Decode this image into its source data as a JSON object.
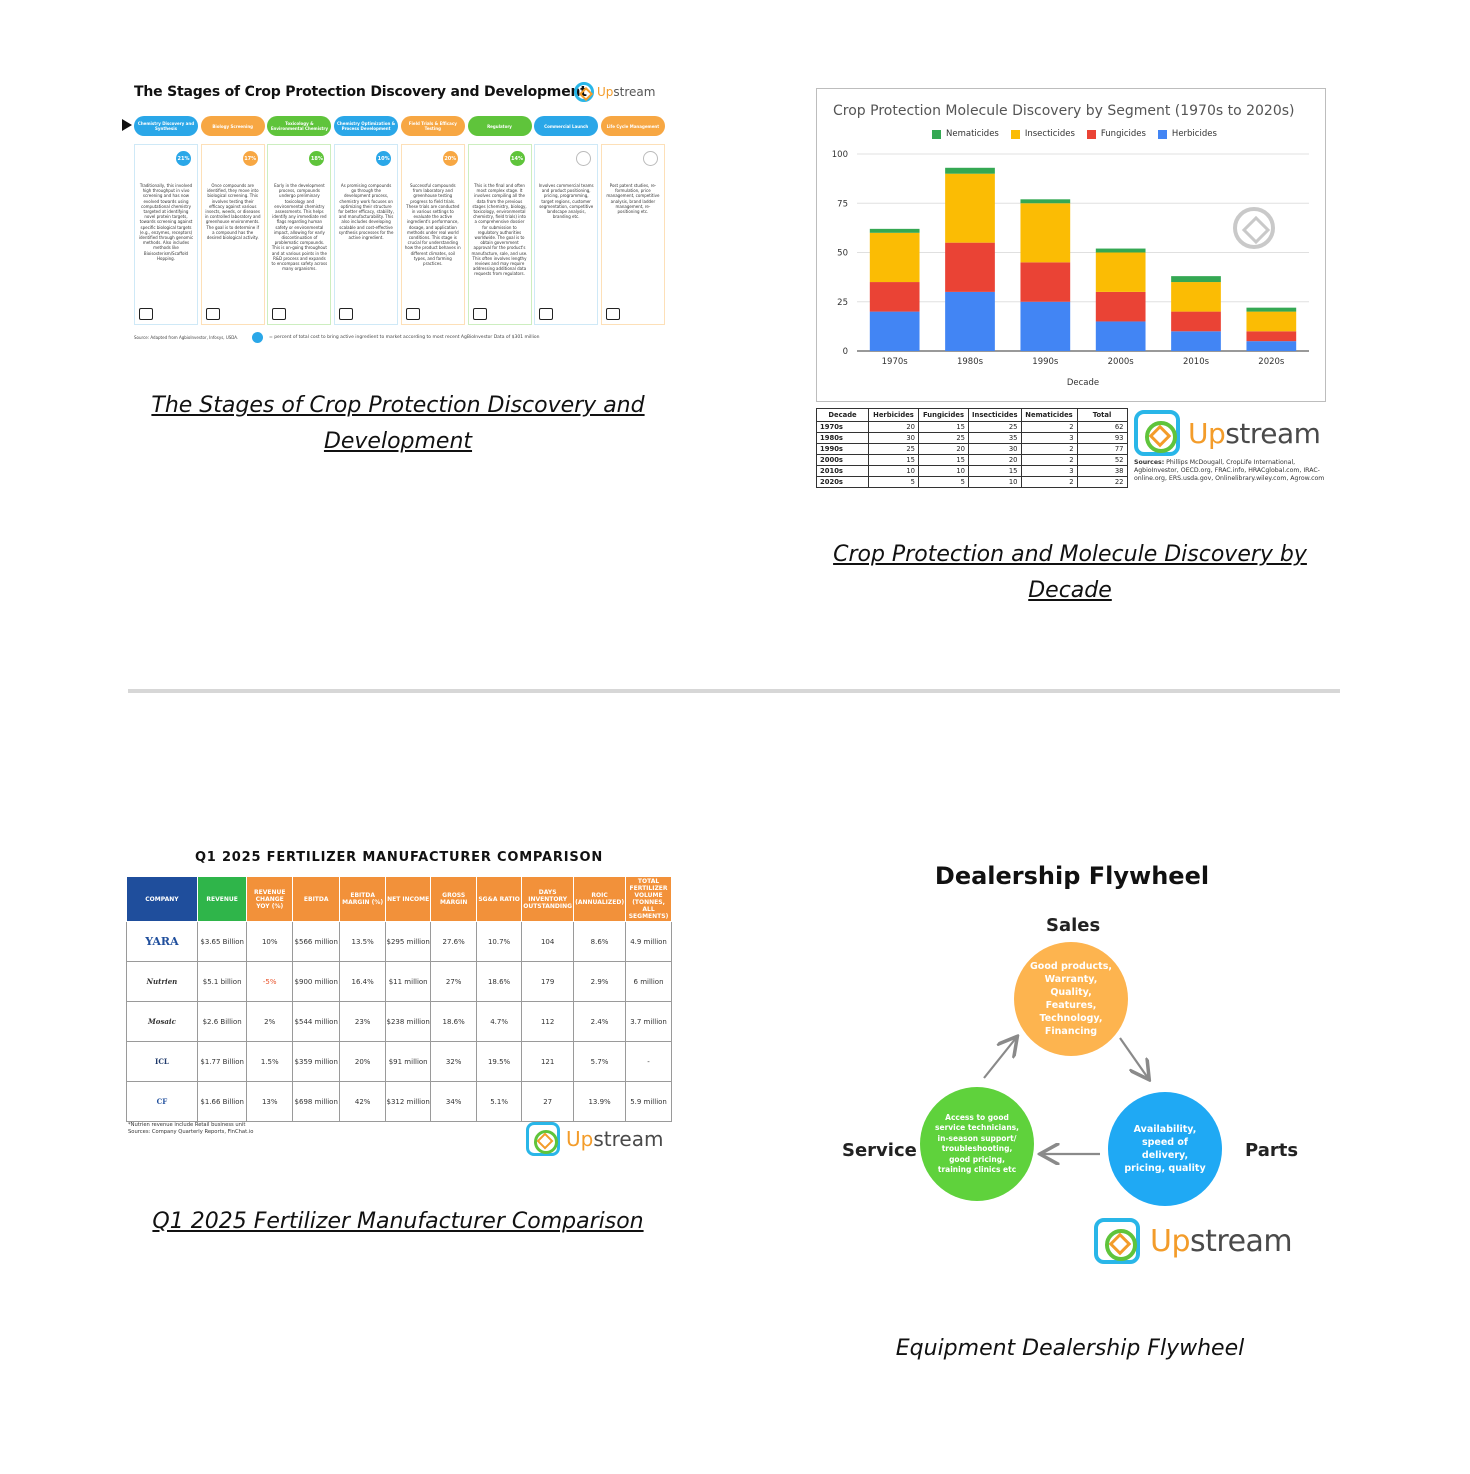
{
  "cards": {
    "stages": {
      "caption": "The Stages of Crop Protection Discovery and Development",
      "title": "The Stages of Crop Protection Discovery and Development",
      "logo_pre": "Up",
      "logo_post": "stream",
      "stages": [
        {
          "label": "Chemistry Discovery and Synthesis",
          "color": "#2aa7e8",
          "badge": "21%",
          "text": "Traditionally, this involved high throughput in vivo screening and has now evolved towards using computational chemistry targeted at identifying novel protein targets, towards screening against specific biological targets (e.g., enzymes, receptors) identified through genomic methods. Also includes methods like Bioisosterism/Scaffold Hopping."
        },
        {
          "label": "Biology Screening",
          "color": "#f7a743",
          "badge": "17%",
          "text": "Once compounds are identified, they move into biological screening. This involves testing their efficacy against various insects, weeds, or diseases in controlled laboratory and greenhouse environments. The goal is to determine if a compound has the desired biological activity."
        },
        {
          "label": "Toxicology & Environmental Chemistry",
          "color": "#5fc43b",
          "badge": "18%",
          "text": "Early in the development process, compounds undergo preliminary toxicology and environmental chemistry assessments. This helps identify any immediate red flags regarding human safety or environmental impact, allowing for early discontinuation of problematic compounds. This is on-going throughout and at various points in the R&D process and expands to encompass safety across many organisms."
        },
        {
          "label": "Chemistry Optimization & Process Development",
          "color": "#2aa7e8",
          "badge": "10%",
          "text": "As promising compounds go through the development process, chemistry work focuses on optimizing their structure for better efficacy, stability, and manufacturability. This also includes developing scalable and cost-effective synthesis processes for the active ingredient."
        },
        {
          "label": "Field Trials & Efficacy Testing",
          "color": "#f7a743",
          "badge": "20%",
          "text": "Successful compounds from laboratory and greenhouse testing progress to field trials. These trials are conducted in various settings to evaluate the active ingredient's performance, dosage, and application methods under real world conditions. This stage is crucial for understanding how the product behaves in different climates, soil types, and farming practices."
        },
        {
          "label": "Regulatory",
          "color": "#5fc43b",
          "badge": "14%",
          "text": "This is the final and often most complex stage. It involves compiling all the data from the previous stages (chemistry, biology, toxicology, environmental chemistry, field trials) into a comprehensive dossier for submission to regulatory authorities worldwide. The goal is to obtain government approval for the product's manufacture, sale, and use. This often involves lengthy reviews and may require addressing additional data requests from regulators."
        },
        {
          "label": "Commercial Launch",
          "color": "#2aa7e8",
          "badge": "",
          "text": "Involves commercial teams and product positioning, pricing, programming, target regions, customer segmentation, competitive landscape analysis, branding etc."
        },
        {
          "label": "Life Cycle Management",
          "color": "#f7a743",
          "badge": "",
          "text": "Post patent studies, re-formulation, price management, competitive analysis, brand ladder management, re-positioning etc."
        }
      ],
      "footnote": "Source: Adapted from AgbioInvestor, Infosys, USDA.",
      "legend": "= percent of total cost to bring active ingredient to market according to most recent AgBioInvestor Data of $301 million"
    },
    "molecule": {
      "caption": "Crop Protection and Molecule Discovery by Decade",
      "logo_pre": "Up",
      "logo_post": "stream",
      "sources_label": "Sources:",
      "sources": "Phillips McDougall, CropLife International, AgbioInvestor, OECD.org, FRAC.info, HRACglobal.com, IRAC-online.org, ERS.usda.gov, Onlinelibrary.wiley.com, Agrow.com",
      "table_headers": [
        "Decade",
        "Herbicides",
        "Fungicides",
        "Insecticides",
        "Nematicides",
        "Total"
      ],
      "table_rows": [
        [
          "1970s",
          "20",
          "15",
          "25",
          "2",
          "62"
        ],
        [
          "1980s",
          "30",
          "25",
          "35",
          "3",
          "93"
        ],
        [
          "1990s",
          "25",
          "20",
          "30",
          "2",
          "77"
        ],
        [
          "2000s",
          "15",
          "15",
          "20",
          "2",
          "52"
        ],
        [
          "2010s",
          "10",
          "10",
          "15",
          "3",
          "38"
        ],
        [
          "2020s",
          "5",
          "5",
          "10",
          "2",
          "22"
        ]
      ]
    },
    "fertilizer": {
      "caption": "Q1 2025 Fertilizer Manufacturer Comparison",
      "title": "Q1 2025 FERTILIZER MANUFACTURER COMPARISON",
      "headers": [
        "COMPANY",
        "REVENUE",
        "REVENUE CHANGE YOY (%)",
        "EBITDA",
        "EBITDA MARGIN (%)",
        "NET INCOME",
        "GROSS MARGIN",
        "SG&A RATIO",
        "DAYS INVENTORY OUTSTANDING",
        "ROIC (ANNUALIZED)",
        "TOTAL FERTILIZER VOLUME (TONNES, ALL SEGMENTS)"
      ],
      "header_colors": [
        "#1f4e9c",
        "#2fb54a",
        "#f2913a",
        "#f2913a",
        "#f2913a",
        "#f2913a",
        "#f2913a",
        "#f2913a",
        "#f2913a",
        "#f2913a",
        "#f2913a"
      ],
      "rows": [
        {
          "company": "YARA",
          "cells": [
            "$3.65 Billion",
            "10%",
            "$566 million",
            "13.5%",
            "$295 million",
            "27.6%",
            "10.7%",
            "104",
            "8.6%",
            "4.9 million"
          ]
        },
        {
          "company": "Nutrien",
          "cells": [
            "$5.1 billion",
            "-5%",
            "$900 million",
            "16.4%",
            "$11 million",
            "27%",
            "18.6%",
            "179",
            "2.9%",
            "6 million"
          ]
        },
        {
          "company": "Mosaic",
          "cells": [
            "$2.6 Billion",
            "2%",
            "$544 million",
            "23%",
            "$238 million",
            "18.6%",
            "4.7%",
            "112",
            "2.4%",
            "3.7 million"
          ]
        },
        {
          "company": "ICL",
          "cells": [
            "$1.77 Billion",
            "1.5%",
            "$359 million",
            "20%",
            "$91 million",
            "32%",
            "19.5%",
            "121",
            "5.7%",
            "-"
          ]
        },
        {
          "company": "CF",
          "cells": [
            "$1.66 Billion",
            "13%",
            "$698 million",
            "42%",
            "$312 million",
            "34%",
            "5.1%",
            "27",
            "13.9%",
            "5.9 million"
          ]
        }
      ],
      "note_line1": "*Nutrien revenue include Retail business unit",
      "note_line2": "Sources: Company Quarterly Reports, FinChat.io",
      "logo_pre": "Up",
      "logo_post": "stream"
    },
    "flywheel": {
      "caption": "Equipment Dealership Flywheel",
      "title": "Dealership Flywheel",
      "sales_label": "Sales",
      "service_label": "Service",
      "parts_label": "Parts",
      "sales_text": "Good products, Warranty, Quality, Features, Technology, Financing",
      "service_text": "Access to good service technicians, in-season support/ troubleshooting, good pricing, training clinics etc",
      "parts_text": "Availability, speed of delivery, pricing, quality",
      "logo_pre": "Up",
      "logo_post": "stream"
    }
  },
  "chart_data": {
    "type": "bar",
    "stacked": true,
    "title": "Crop Protection Molecule Discovery by Segment (1970s to 2020s)",
    "xlabel": "Decade",
    "ylabel": "",
    "categories": [
      "1970s",
      "1980s",
      "1990s",
      "2000s",
      "2010s",
      "2020s"
    ],
    "series": [
      {
        "name": "Herbicides",
        "color": "#4285f4",
        "values": [
          20,
          30,
          25,
          15,
          10,
          5
        ]
      },
      {
        "name": "Fungicides",
        "color": "#ea4335",
        "values": [
          15,
          25,
          20,
          15,
          10,
          5
        ]
      },
      {
        "name": "Insecticides",
        "color": "#fbbc04",
        "values": [
          25,
          35,
          30,
          20,
          15,
          10
        ]
      },
      {
        "name": "Nematicides",
        "color": "#34a853",
        "values": [
          2,
          3,
          2,
          2,
          3,
          2
        ]
      }
    ],
    "legend_order": [
      "Nematicides",
      "Insecticides",
      "Fungicides",
      "Herbicides"
    ],
    "ylim": [
      0,
      100
    ],
    "yticks": [
      0,
      25,
      50,
      75,
      100
    ],
    "grid": true,
    "legend_position": "top"
  }
}
